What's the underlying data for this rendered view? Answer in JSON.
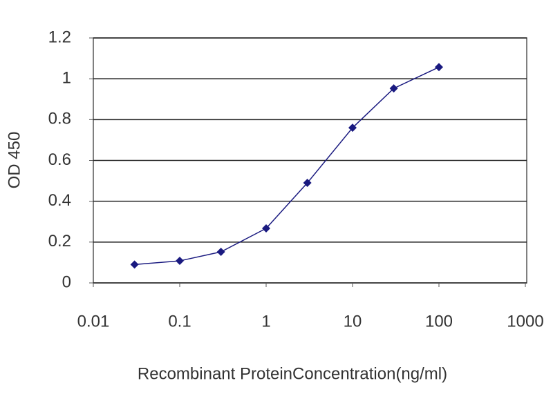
{
  "chart_data": {
    "type": "line",
    "x_label": "Recombinant ProteinConcentration(ng/ml)",
    "y_label": "OD 450",
    "x": [
      0.03,
      0.1,
      0.3,
      1,
      3,
      10,
      30,
      100
    ],
    "values": [
      0.09,
      0.108,
      0.152,
      0.267,
      0.49,
      0.76,
      0.953,
      1.057
    ],
    "color": "#1a1a80",
    "x_log": true,
    "xlim": [
      0.01,
      1000
    ],
    "xticks": [
      0.01,
      0.1,
      1,
      10,
      100,
      1000
    ],
    "ylim": [
      0,
      1.2
    ],
    "yticks": [
      0,
      0.2,
      0.4,
      0.6,
      0.8,
      1,
      1.2
    ],
    "grid": true
  }
}
